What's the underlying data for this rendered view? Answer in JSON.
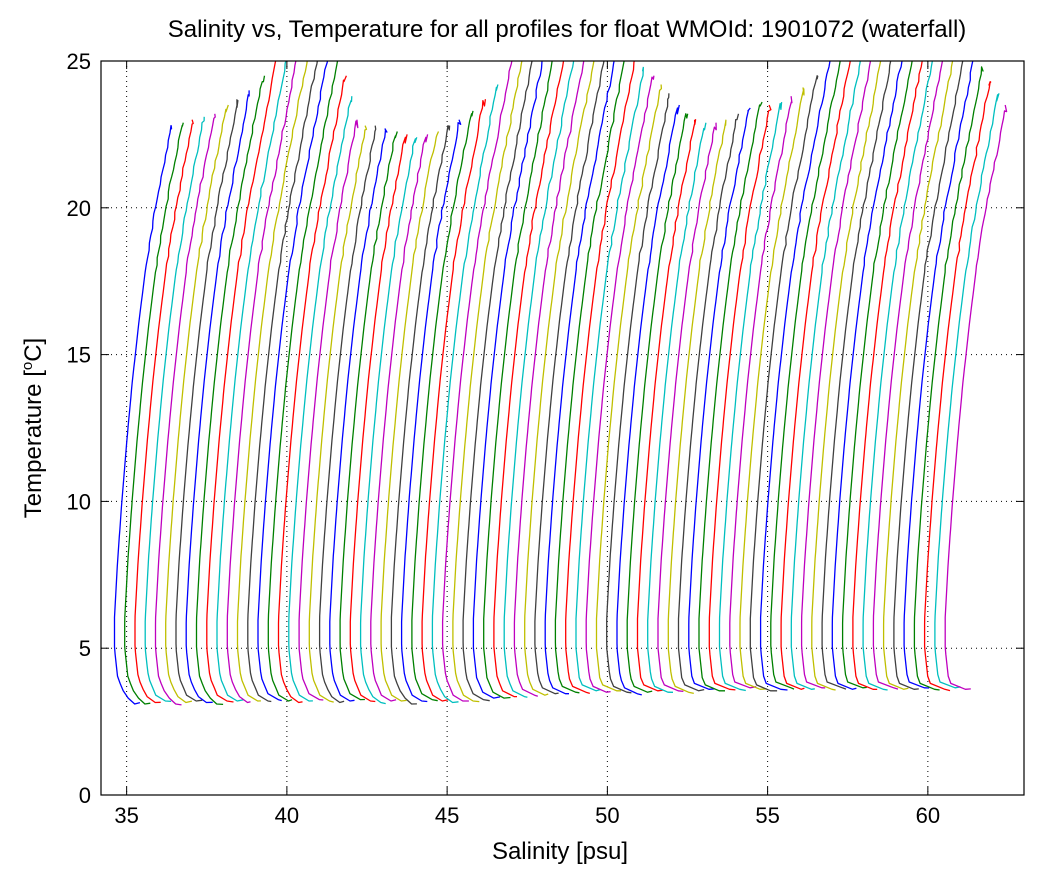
{
  "chart_data": {
    "type": "line",
    "title": "Salinity vs, Temperature for all profiles for float WMOId: 1901072 (waterfall)",
    "xlabel": "Salinity [psu]",
    "ylabel_prefix": "Temperature [",
    "ylabel_sup": "o",
    "ylabel_suffix": "C]",
    "xlim": [
      34.2,
      63
    ],
    "ylim": [
      0,
      25
    ],
    "xticks": [
      35,
      40,
      45,
      50,
      55,
      60
    ],
    "yticks": [
      0,
      5,
      10,
      15,
      20,
      25
    ],
    "grid": true,
    "grid_style": "dotted",
    "profile_count": 82,
    "profile_offset_psu": 0.32,
    "first_profile_base_salinity": 34.6,
    "profile_colors": [
      "#0000ff",
      "#008000",
      "#ff0000",
      "#00bfbf",
      "#bf00bf",
      "#bfbf00",
      "#404040"
    ],
    "series": [
      {
        "base_profile": [
          {
            "temp": 3.1,
            "salinity": 35.25
          },
          {
            "temp": 3.4,
            "salinity": 34.95
          },
          {
            "temp": 4.0,
            "salinity": 34.72
          },
          {
            "temp": 5.0,
            "salinity": 34.62
          },
          {
            "temp": 6.0,
            "salinity": 34.62
          },
          {
            "temp": 8.0,
            "salinity": 34.72
          },
          {
            "temp": 10.0,
            "salinity": 34.85
          },
          {
            "temp": 12.0,
            "salinity": 35.0
          },
          {
            "temp": 14.0,
            "salinity": 35.17
          },
          {
            "temp": 16.0,
            "salinity": 35.37
          },
          {
            "temp": 18.0,
            "salinity": 35.6
          },
          {
            "temp": 20.0,
            "salinity": 35.9
          },
          {
            "temp": 22.0,
            "salinity": 36.25
          }
        ],
        "surface_temps": [
          22.8,
          22.9,
          23.0,
          23.1,
          23.2,
          23.5,
          23.7,
          24.0,
          24.5,
          25.0,
          25.0,
          25.0,
          25.0,
          25.0,
          25.0,
          25.0,
          24.5,
          23.8,
          23.0,
          22.8,
          22.8,
          22.7,
          22.6,
          22.5,
          22.4,
          22.5,
          22.6,
          22.8,
          23.0,
          23.3,
          23.7,
          24.2,
          25.0,
          25.0,
          25.0,
          25.0,
          25.0,
          25.0,
          25.0,
          25.0,
          25.0,
          25.0,
          25.0,
          25.0,
          25.0,
          24.8,
          24.5,
          24.2,
          23.9,
          23.5,
          23.2,
          23.0,
          22.9,
          22.9,
          23.0,
          23.2,
          23.4,
          23.6,
          23.5,
          23.6,
          23.8,
          24.1,
          24.5,
          25.0,
          25.0,
          25.0,
          25.0,
          25.0,
          25.0,
          25.0,
          25.0,
          25.0,
          25.0,
          25.0,
          25.0,
          25.0,
          25.0,
          25.0,
          24.8,
          24.3,
          23.9,
          23.5
        ],
        "deep_temps": [
          3.1,
          3.1,
          3.15,
          3.2,
          3.1,
          3.15,
          3.2,
          3.15,
          3.1,
          3.2,
          3.2,
          3.15,
          3.2,
          3.2,
          3.25,
          3.2,
          3.15,
          3.2,
          3.25,
          3.2,
          3.15,
          3.2,
          3.25,
          3.2,
          3.15,
          3.2,
          3.2,
          3.1,
          3.2,
          3.25,
          3.2,
          3.15,
          3.2,
          3.2,
          3.25,
          3.3,
          3.3,
          3.35,
          3.35,
          3.4,
          3.4,
          3.45,
          3.45,
          3.5,
          3.5,
          3.55,
          3.5,
          3.55,
          3.5,
          3.45,
          3.5,
          3.55,
          3.5,
          3.55,
          3.5,
          3.55,
          3.6,
          3.55,
          3.6,
          3.6,
          3.65,
          3.6,
          3.55,
          3.6,
          3.65,
          3.6,
          3.6,
          3.65,
          3.6,
          3.65,
          3.6,
          3.65,
          3.6,
          3.6,
          3.65,
          3.6,
          3.6,
          3.65,
          3.6,
          3.6,
          3.65,
          3.6
        ]
      }
    ]
  }
}
